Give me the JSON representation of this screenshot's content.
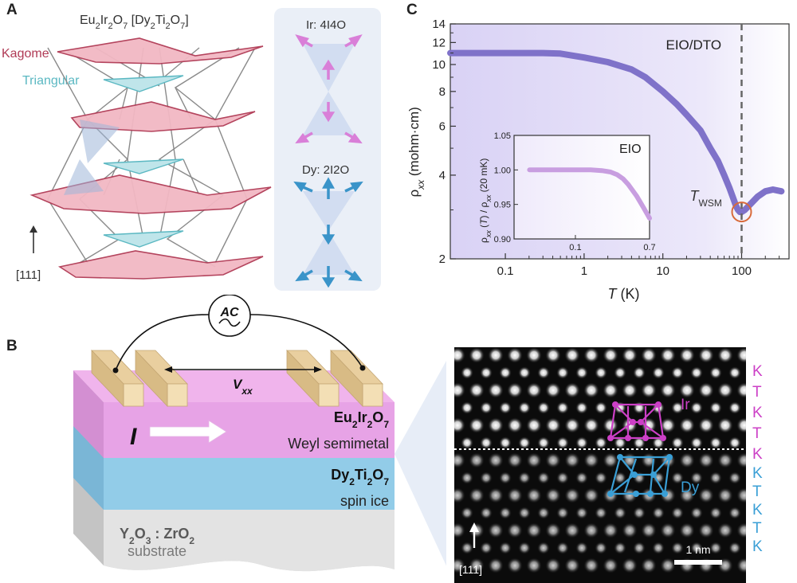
{
  "panels": {
    "a": "A",
    "b": "B",
    "c": "C"
  },
  "panel_a": {
    "title_html_parts": [
      "Eu",
      "2",
      "Ir",
      "2",
      "O",
      "7",
      " [Dy",
      "2",
      "Ti",
      "2",
      "O",
      "7",
      "]"
    ],
    "kagome_label": "Kagome",
    "triangular_label": "Triangular",
    "axis_label": "[111]",
    "ir_label": "Ir: 4I4O",
    "dy_label": "Dy: 2I2O",
    "colors": {
      "kagome": "#c9566e",
      "triangular": "#7cc7cf",
      "ir_arrow": "#d97fd8",
      "dy_arrow": "#3a94c9"
    }
  },
  "panel_b": {
    "ac_label": "AC",
    "vxx_label": "V",
    "vxx_sub": "xx",
    "current_label": "I",
    "eio_label_parts": [
      "Eu",
      "2",
      "Ir",
      "2",
      "O",
      "7"
    ],
    "eio_desc": "Weyl semimetal",
    "dto_label_parts": [
      "Dy",
      "2",
      "Ti",
      "2",
      "O",
      "7"
    ],
    "dto_desc": "spin ice",
    "substrate_label_parts": [
      "Y",
      "2",
      "O",
      "3",
      " : ZrO",
      "2"
    ],
    "substrate_desc": "substrate",
    "stem": {
      "ir_label": "Ir",
      "dy_label": "Dy",
      "axis_label": "[111]",
      "scale_label": "1 nm",
      "stacking_top": [
        "K",
        "T",
        "K",
        "T",
        "K"
      ],
      "stacking_bottom": [
        "K",
        "T",
        "K",
        "T",
        "K"
      ]
    },
    "colors": {
      "eio": "#e7a3e6",
      "dto": "#8fcbe8",
      "ir": "#cc3fc6",
      "dy": "#3a9fd6"
    }
  },
  "chart_data": {
    "type": "line",
    "title": "EIO/DTO",
    "xlabel": "T (K)",
    "ylabel": "ρxx (mohm·cm)",
    "xscale": "log",
    "yscale": "log",
    "xlim": [
      0.02,
      400
    ],
    "ylim": [
      2,
      14
    ],
    "x_ticks": [
      "0.1",
      "1",
      "10",
      "100"
    ],
    "y_ticks": [
      "2",
      "4",
      "6",
      "8",
      "10",
      "12",
      "14"
    ],
    "annotation": "T_WSM",
    "annotation_x": 100,
    "series": [
      {
        "color": "#7f72c9",
        "x": [
          0.02,
          0.05,
          0.1,
          0.2,
          0.3,
          0.5,
          1,
          2,
          4,
          6,
          10,
          15,
          20,
          30,
          40,
          50,
          60,
          70,
          80,
          85,
          90,
          95,
          100,
          110,
          130,
          160,
          200,
          250,
          320
        ],
        "y": [
          11.0,
          11.0,
          11.0,
          11.0,
          11.0,
          10.95,
          10.6,
          10.2,
          9.6,
          9.0,
          8.0,
          7.2,
          6.6,
          5.8,
          5.0,
          4.5,
          4.0,
          3.6,
          3.25,
          3.1,
          3.0,
          2.95,
          2.95,
          3.0,
          3.15,
          3.35,
          3.5,
          3.55,
          3.5
        ]
      }
    ],
    "inset": {
      "title": "EIO",
      "xscale": "log",
      "ylabel": "ρxx (T) / ρxx (20 mK)",
      "xlim": [
        0.02,
        0.7
      ],
      "ylim": [
        0.9,
        1.05
      ],
      "x_ticks": [
        "0.1",
        "0.7"
      ],
      "y_ticks": [
        "0.90",
        "0.95",
        "1.00",
        "1.05"
      ],
      "series": [
        {
          "color": "#c89ee0",
          "x": [
            0.03,
            0.05,
            0.1,
            0.15,
            0.2,
            0.25,
            0.3,
            0.35,
            0.4,
            0.5,
            0.6,
            0.7
          ],
          "y": [
            1.0,
            1.0,
            1.0,
            1.0,
            0.999,
            0.997,
            0.993,
            0.987,
            0.979,
            0.962,
            0.945,
            0.93
          ]
        }
      ]
    }
  }
}
